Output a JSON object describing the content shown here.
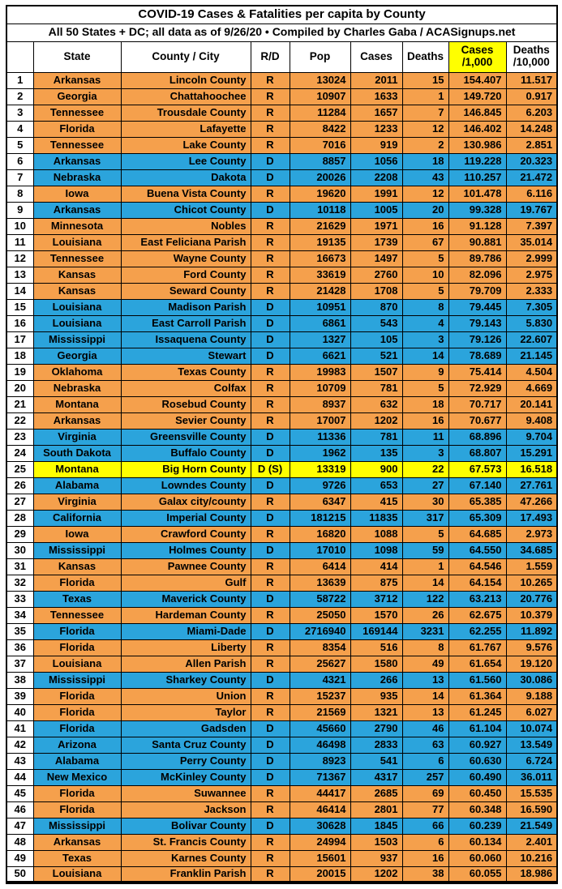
{
  "title": "COVID-19 Cases & Fatalities per capita by County",
  "subtitle": "All 50 States + DC; all data as of 9/26/20  • Compiled by Charles Gaba / ACASignups.net",
  "colors": {
    "republican_row": "#F5A04C",
    "democrat_row": "#2BA4DC",
    "highlight_row": "#FFFF00",
    "header_cases_bg": "#FFFF00",
    "border": "#000000"
  },
  "chart_data": {
    "type": "table",
    "columns": {
      "rank": "",
      "state": "State",
      "county": "County / City",
      "party": "R/D",
      "pop": "Pop",
      "cases": "Cases",
      "deaths": "Deaths",
      "cases_per_1000": "Cases\n/1,000",
      "deaths_per_10000": "Deaths\n/10,000"
    },
    "rows": [
      {
        "rank": "1",
        "state": "Arkansas",
        "county": "Lincoln County",
        "party": "R",
        "pop": "13024",
        "cases": "2011",
        "deaths": "15",
        "cases_per_1000": "154.407",
        "deaths_per_10000": "11.517",
        "color": "R"
      },
      {
        "rank": "2",
        "state": "Georgia",
        "county": "Chattahoochee",
        "party": "R",
        "pop": "10907",
        "cases": "1633",
        "deaths": "1",
        "cases_per_1000": "149.720",
        "deaths_per_10000": "0.917",
        "color": "R"
      },
      {
        "rank": "3",
        "state": "Tennessee",
        "county": "Trousdale County",
        "party": "R",
        "pop": "11284",
        "cases": "1657",
        "deaths": "7",
        "cases_per_1000": "146.845",
        "deaths_per_10000": "6.203",
        "color": "R"
      },
      {
        "rank": "4",
        "state": "Florida",
        "county": "Lafayette",
        "party": "R",
        "pop": "8422",
        "cases": "1233",
        "deaths": "12",
        "cases_per_1000": "146.402",
        "deaths_per_10000": "14.248",
        "color": "R"
      },
      {
        "rank": "5",
        "state": "Tennessee",
        "county": "Lake County",
        "party": "R",
        "pop": "7016",
        "cases": "919",
        "deaths": "2",
        "cases_per_1000": "130.986",
        "deaths_per_10000": "2.851",
        "color": "R"
      },
      {
        "rank": "6",
        "state": "Arkansas",
        "county": "Lee County",
        "party": "D",
        "pop": "8857",
        "cases": "1056",
        "deaths": "18",
        "cases_per_1000": "119.228",
        "deaths_per_10000": "20.323",
        "color": "D"
      },
      {
        "rank": "7",
        "state": "Nebraska",
        "county": "Dakota",
        "party": "D",
        "pop": "20026",
        "cases": "2208",
        "deaths": "43",
        "cases_per_1000": "110.257",
        "deaths_per_10000": "21.472",
        "color": "D"
      },
      {
        "rank": "8",
        "state": "Iowa",
        "county": "Buena Vista County",
        "party": "R",
        "pop": "19620",
        "cases": "1991",
        "deaths": "12",
        "cases_per_1000": "101.478",
        "deaths_per_10000": "6.116",
        "color": "R"
      },
      {
        "rank": "9",
        "state": "Arkansas",
        "county": "Chicot County",
        "party": "D",
        "pop": "10118",
        "cases": "1005",
        "deaths": "20",
        "cases_per_1000": "99.328",
        "deaths_per_10000": "19.767",
        "color": "D"
      },
      {
        "rank": "10",
        "state": "Minnesota",
        "county": "Nobles",
        "party": "R",
        "pop": "21629",
        "cases": "1971",
        "deaths": "16",
        "cases_per_1000": "91.128",
        "deaths_per_10000": "7.397",
        "color": "R"
      },
      {
        "rank": "11",
        "state": "Louisiana",
        "county": "East Feliciana Parish",
        "party": "R",
        "pop": "19135",
        "cases": "1739",
        "deaths": "67",
        "cases_per_1000": "90.881",
        "deaths_per_10000": "35.014",
        "color": "R"
      },
      {
        "rank": "12",
        "state": "Tennessee",
        "county": "Wayne County",
        "party": "R",
        "pop": "16673",
        "cases": "1497",
        "deaths": "5",
        "cases_per_1000": "89.786",
        "deaths_per_10000": "2.999",
        "color": "R"
      },
      {
        "rank": "13",
        "state": "Kansas",
        "county": "Ford County",
        "party": "R",
        "pop": "33619",
        "cases": "2760",
        "deaths": "10",
        "cases_per_1000": "82.096",
        "deaths_per_10000": "2.975",
        "color": "R"
      },
      {
        "rank": "14",
        "state": "Kansas",
        "county": "Seward County",
        "party": "R",
        "pop": "21428",
        "cases": "1708",
        "deaths": "5",
        "cases_per_1000": "79.709",
        "deaths_per_10000": "2.333",
        "color": "R"
      },
      {
        "rank": "15",
        "state": "Louisiana",
        "county": "Madison Parish",
        "party": "D",
        "pop": "10951",
        "cases": "870",
        "deaths": "8",
        "cases_per_1000": "79.445",
        "deaths_per_10000": "7.305",
        "color": "D"
      },
      {
        "rank": "16",
        "state": "Louisiana",
        "county": "East Carroll Parish",
        "party": "D",
        "pop": "6861",
        "cases": "543",
        "deaths": "4",
        "cases_per_1000": "79.143",
        "deaths_per_10000": "5.830",
        "color": "D"
      },
      {
        "rank": "17",
        "state": "Mississippi",
        "county": "Issaquena County",
        "party": "D",
        "pop": "1327",
        "cases": "105",
        "deaths": "3",
        "cases_per_1000": "79.126",
        "deaths_per_10000": "22.607",
        "color": "D"
      },
      {
        "rank": "18",
        "state": "Georgia",
        "county": "Stewart",
        "party": "D",
        "pop": "6621",
        "cases": "521",
        "deaths": "14",
        "cases_per_1000": "78.689",
        "deaths_per_10000": "21.145",
        "color": "D"
      },
      {
        "rank": "19",
        "state": "Oklahoma",
        "county": "Texas County",
        "party": "R",
        "pop": "19983",
        "cases": "1507",
        "deaths": "9",
        "cases_per_1000": "75.414",
        "deaths_per_10000": "4.504",
        "color": "R"
      },
      {
        "rank": "20",
        "state": "Nebraska",
        "county": "Colfax",
        "party": "R",
        "pop": "10709",
        "cases": "781",
        "deaths": "5",
        "cases_per_1000": "72.929",
        "deaths_per_10000": "4.669",
        "color": "R"
      },
      {
        "rank": "21",
        "state": "Montana",
        "county": "Rosebud County",
        "party": "R",
        "pop": "8937",
        "cases": "632",
        "deaths": "18",
        "cases_per_1000": "70.717",
        "deaths_per_10000": "20.141",
        "color": "R"
      },
      {
        "rank": "22",
        "state": "Arkansas",
        "county": "Sevier County",
        "party": "R",
        "pop": "17007",
        "cases": "1202",
        "deaths": "16",
        "cases_per_1000": "70.677",
        "deaths_per_10000": "9.408",
        "color": "R"
      },
      {
        "rank": "23",
        "state": "Virginia",
        "county": "Greensville County",
        "party": "D",
        "pop": "11336",
        "cases": "781",
        "deaths": "11",
        "cases_per_1000": "68.896",
        "deaths_per_10000": "9.704",
        "color": "D"
      },
      {
        "rank": "24",
        "state": "South Dakota",
        "county": "Buffalo County",
        "party": "D",
        "pop": "1962",
        "cases": "135",
        "deaths": "3",
        "cases_per_1000": "68.807",
        "deaths_per_10000": "15.291",
        "color": "D"
      },
      {
        "rank": "25",
        "state": "Montana",
        "county": "Big Horn County",
        "party": "D (S)",
        "pop": "13319",
        "cases": "900",
        "deaths": "22",
        "cases_per_1000": "67.573",
        "deaths_per_10000": "16.518",
        "color": "highlight"
      },
      {
        "rank": "26",
        "state": "Alabama",
        "county": "Lowndes County",
        "party": "D",
        "pop": "9726",
        "cases": "653",
        "deaths": "27",
        "cases_per_1000": "67.140",
        "deaths_per_10000": "27.761",
        "color": "D"
      },
      {
        "rank": "27",
        "state": "Virginia",
        "county": "Galax city/county",
        "party": "R",
        "pop": "6347",
        "cases": "415",
        "deaths": "30",
        "cases_per_1000": "65.385",
        "deaths_per_10000": "47.266",
        "color": "R"
      },
      {
        "rank": "28",
        "state": "California",
        "county": "Imperial County",
        "party": "D",
        "pop": "181215",
        "cases": "11835",
        "deaths": "317",
        "cases_per_1000": "65.309",
        "deaths_per_10000": "17.493",
        "color": "D"
      },
      {
        "rank": "29",
        "state": "Iowa",
        "county": "Crawford County",
        "party": "R",
        "pop": "16820",
        "cases": "1088",
        "deaths": "5",
        "cases_per_1000": "64.685",
        "deaths_per_10000": "2.973",
        "color": "R"
      },
      {
        "rank": "30",
        "state": "Mississippi",
        "county": "Holmes County",
        "party": "D",
        "pop": "17010",
        "cases": "1098",
        "deaths": "59",
        "cases_per_1000": "64.550",
        "deaths_per_10000": "34.685",
        "color": "D"
      },
      {
        "rank": "31",
        "state": "Kansas",
        "county": "Pawnee County",
        "party": "R",
        "pop": "6414",
        "cases": "414",
        "deaths": "1",
        "cases_per_1000": "64.546",
        "deaths_per_10000": "1.559",
        "color": "R"
      },
      {
        "rank": "32",
        "state": "Florida",
        "county": "Gulf",
        "party": "R",
        "pop": "13639",
        "cases": "875",
        "deaths": "14",
        "cases_per_1000": "64.154",
        "deaths_per_10000": "10.265",
        "color": "R"
      },
      {
        "rank": "33",
        "state": "Texas",
        "county": "Maverick County",
        "party": "D",
        "pop": "58722",
        "cases": "3712",
        "deaths": "122",
        "cases_per_1000": "63.213",
        "deaths_per_10000": "20.776",
        "color": "D"
      },
      {
        "rank": "34",
        "state": "Tennessee",
        "county": "Hardeman County",
        "party": "R",
        "pop": "25050",
        "cases": "1570",
        "deaths": "26",
        "cases_per_1000": "62.675",
        "deaths_per_10000": "10.379",
        "color": "R"
      },
      {
        "rank": "35",
        "state": "Florida",
        "county": "Miami-Dade",
        "party": "D",
        "pop": "2716940",
        "cases": "169144",
        "deaths": "3231",
        "cases_per_1000": "62.255",
        "deaths_per_10000": "11.892",
        "color": "D"
      },
      {
        "rank": "36",
        "state": "Florida",
        "county": "Liberty",
        "party": "R",
        "pop": "8354",
        "cases": "516",
        "deaths": "8",
        "cases_per_1000": "61.767",
        "deaths_per_10000": "9.576",
        "color": "R"
      },
      {
        "rank": "37",
        "state": "Louisiana",
        "county": "Allen Parish",
        "party": "R",
        "pop": "25627",
        "cases": "1580",
        "deaths": "49",
        "cases_per_1000": "61.654",
        "deaths_per_10000": "19.120",
        "color": "R"
      },
      {
        "rank": "38",
        "state": "Mississippi",
        "county": "Sharkey County",
        "party": "D",
        "pop": "4321",
        "cases": "266",
        "deaths": "13",
        "cases_per_1000": "61.560",
        "deaths_per_10000": "30.086",
        "color": "D"
      },
      {
        "rank": "39",
        "state": "Florida",
        "county": "Union",
        "party": "R",
        "pop": "15237",
        "cases": "935",
        "deaths": "14",
        "cases_per_1000": "61.364",
        "deaths_per_10000": "9.188",
        "color": "R"
      },
      {
        "rank": "40",
        "state": "Florida",
        "county": "Taylor",
        "party": "R",
        "pop": "21569",
        "cases": "1321",
        "deaths": "13",
        "cases_per_1000": "61.245",
        "deaths_per_10000": "6.027",
        "color": "R"
      },
      {
        "rank": "41",
        "state": "Florida",
        "county": "Gadsden",
        "party": "D",
        "pop": "45660",
        "cases": "2790",
        "deaths": "46",
        "cases_per_1000": "61.104",
        "deaths_per_10000": "10.074",
        "color": "D"
      },
      {
        "rank": "42",
        "state": "Arizona",
        "county": "Santa Cruz County",
        "party": "D",
        "pop": "46498",
        "cases": "2833",
        "deaths": "63",
        "cases_per_1000": "60.927",
        "deaths_per_10000": "13.549",
        "color": "D"
      },
      {
        "rank": "43",
        "state": "Alabama",
        "county": "Perry County",
        "party": "D",
        "pop": "8923",
        "cases": "541",
        "deaths": "6",
        "cases_per_1000": "60.630",
        "deaths_per_10000": "6.724",
        "color": "D"
      },
      {
        "rank": "44",
        "state": "New Mexico",
        "county": "McKinley County",
        "party": "D",
        "pop": "71367",
        "cases": "4317",
        "deaths": "257",
        "cases_per_1000": "60.490",
        "deaths_per_10000": "36.011",
        "color": "D"
      },
      {
        "rank": "45",
        "state": "Florida",
        "county": "Suwannee",
        "party": "R",
        "pop": "44417",
        "cases": "2685",
        "deaths": "69",
        "cases_per_1000": "60.450",
        "deaths_per_10000": "15.535",
        "color": "R"
      },
      {
        "rank": "46",
        "state": "Florida",
        "county": "Jackson",
        "party": "R",
        "pop": "46414",
        "cases": "2801",
        "deaths": "77",
        "cases_per_1000": "60.348",
        "deaths_per_10000": "16.590",
        "color": "R"
      },
      {
        "rank": "47",
        "state": "Mississippi",
        "county": "Bolivar County",
        "party": "D",
        "pop": "30628",
        "cases": "1845",
        "deaths": "66",
        "cases_per_1000": "60.239",
        "deaths_per_10000": "21.549",
        "color": "D"
      },
      {
        "rank": "48",
        "state": "Arkansas",
        "county": "St. Francis County",
        "party": "R",
        "pop": "24994",
        "cases": "1503",
        "deaths": "6",
        "cases_per_1000": "60.134",
        "deaths_per_10000": "2.401",
        "color": "R"
      },
      {
        "rank": "49",
        "state": "Texas",
        "county": "Karnes County",
        "party": "R",
        "pop": "15601",
        "cases": "937",
        "deaths": "16",
        "cases_per_1000": "60.060",
        "deaths_per_10000": "10.216",
        "color": "R"
      },
      {
        "rank": "50",
        "state": "Louisiana",
        "county": "Franklin Parish",
        "party": "R",
        "pop": "20015",
        "cases": "1202",
        "deaths": "38",
        "cases_per_1000": "60.055",
        "deaths_per_10000": "18.986",
        "color": "R"
      }
    ]
  }
}
